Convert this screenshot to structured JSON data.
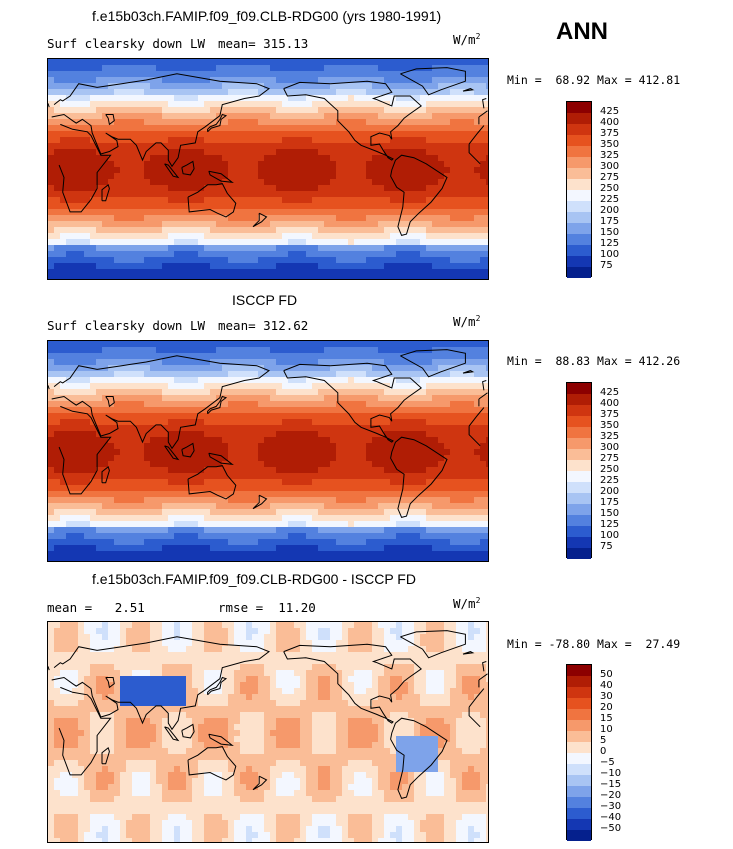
{
  "season": "ANN",
  "panels": [
    {
      "title": "f.e15b03ch.FAMIP.f09_f09.CLB-RDG00 (yrs 1980-1991)",
      "variable": "Surf clearsky down LW",
      "stat_text": "mean= 315.13",
      "units": "W/m",
      "units_exp": "2",
      "min_label": "Min =",
      "min_value": "68.92",
      "max_label": "Max =",
      "max_value": "412.81",
      "colorbar_levels": [
        "425",
        "400",
        "375",
        "350",
        "325",
        "300",
        "275",
        "250",
        "225",
        "200",
        "175",
        "150",
        "125",
        "100",
        "75"
      ],
      "colorbar_colors": [
        "#8c0000",
        "#b01d05",
        "#cf3510",
        "#e6521f",
        "#f07440",
        "#f6996b",
        "#fabd97",
        "#fde2cc",
        "#f3f7ff",
        "#cfe0fb",
        "#a8c4f3",
        "#7ea3ea",
        "#5381df",
        "#2c5ccf",
        "#1437b3",
        "#05208d"
      ],
      "map_palette": "abs"
    },
    {
      "title": "ISCCP FD",
      "variable": "Surf clearsky down LW",
      "stat_text": "mean= 312.62",
      "units": "W/m",
      "units_exp": "2",
      "min_label": "Min =",
      "min_value": "88.83",
      "max_label": "Max =",
      "max_value": "412.26",
      "colorbar_levels": [
        "425",
        "400",
        "375",
        "350",
        "325",
        "300",
        "275",
        "250",
        "225",
        "200",
        "175",
        "150",
        "125",
        "100",
        "75"
      ],
      "colorbar_colors": [
        "#8c0000",
        "#b01d05",
        "#cf3510",
        "#e6521f",
        "#f07440",
        "#f6996b",
        "#fabd97",
        "#fde2cc",
        "#f3f7ff",
        "#cfe0fb",
        "#a8c4f3",
        "#7ea3ea",
        "#5381df",
        "#2c5ccf",
        "#1437b3",
        "#05208d"
      ],
      "map_palette": "abs"
    },
    {
      "title": "f.e15b03ch.FAMIP.f09_f09.CLB-RDG00 - ISCCP FD",
      "variable": "",
      "stat_text": "mean =   2.51",
      "stat_text2": "rmse =  11.20",
      "units": "W/m",
      "units_exp": "2",
      "min_label": "Min =",
      "min_value": "-78.80",
      "max_label": "Max =",
      "max_value": "27.49",
      "colorbar_levels": [
        "50",
        "40",
        "30",
        "20",
        "15",
        "10",
        "5",
        "0",
        "−5",
        "−10",
        "−15",
        "−20",
        "−30",
        "−40",
        "−50"
      ],
      "colorbar_colors": [
        "#8c0000",
        "#b01d05",
        "#cf3510",
        "#e6521f",
        "#f07440",
        "#f6996b",
        "#fabd97",
        "#fde2cc",
        "#f3f7ff",
        "#cfe0fb",
        "#a8c4f3",
        "#7ea3ea",
        "#5381df",
        "#2c5ccf",
        "#1437b3",
        "#05208d"
      ],
      "map_palette": "diff"
    }
  ]
}
